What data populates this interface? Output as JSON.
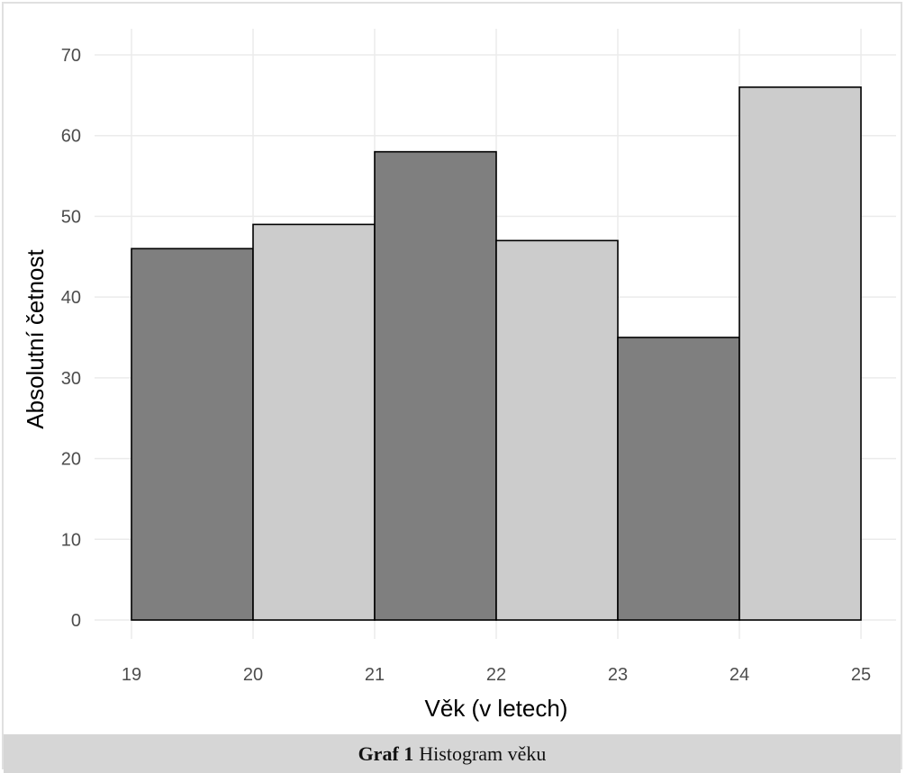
{
  "chart_data": {
    "type": "bar",
    "xlabel": "Věk (v letech)",
    "ylabel": "Absolutní četnost",
    "xlim": [
      19,
      25
    ],
    "ylim": [
      0,
      70
    ],
    "x_ticks": [
      "19",
      "20",
      "21",
      "22",
      "23",
      "24",
      "25"
    ],
    "y_ticks": [
      "0",
      "10",
      "20",
      "30",
      "40",
      "50",
      "60",
      "70"
    ],
    "bins": [
      {
        "from": 19,
        "to": 20,
        "value": 46,
        "color": "#7f7f7f"
      },
      {
        "from": 20,
        "to": 21,
        "value": 49,
        "color": "#cccccc"
      },
      {
        "from": 21,
        "to": 22,
        "value": 58,
        "color": "#7f7f7f"
      },
      {
        "from": 22,
        "to": 23,
        "value": 47,
        "color": "#cccccc"
      },
      {
        "from": 23,
        "to": 24,
        "value": 35,
        "color": "#7f7f7f"
      },
      {
        "from": 24,
        "to": 25,
        "value": 66,
        "color": "#cccccc"
      }
    ],
    "grid": true
  },
  "caption": {
    "label": "Graf 1",
    "text": "Histogram věku"
  }
}
